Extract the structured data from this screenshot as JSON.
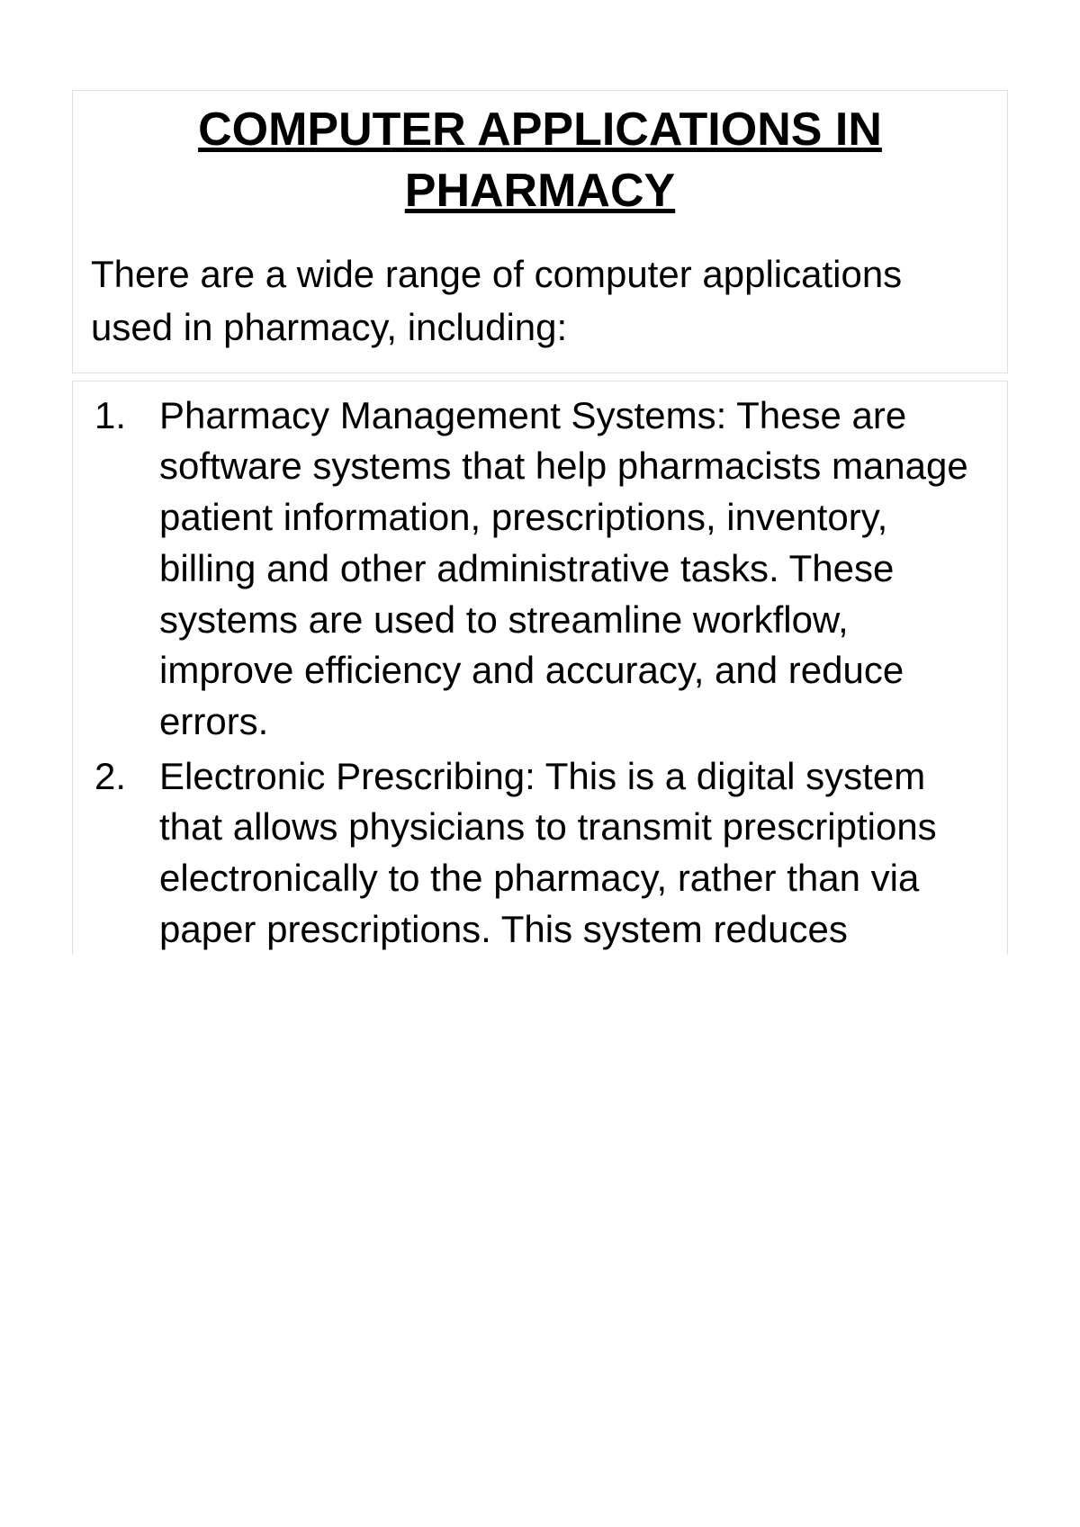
{
  "document": {
    "title": "COMPUTER APPLICATIONS IN PHARMACY",
    "intro": "There are a wide range of computer applications used in pharmacy, including:",
    "items": [
      {
        "number": "1.",
        "text": "Pharmacy Management Systems: These are software systems that help pharmacists manage patient information, prescriptions, inventory, billing and other administrative tasks. These systems are used to streamline workflow, improve efficiency and accuracy, and reduce errors."
      },
      {
        "number": "2.",
        "text": "Electronic Prescribing: This is a digital system that allows physicians to transmit prescriptions electronically to the pharmacy, rather than via paper prescriptions. This system reduces"
      }
    ],
    "colors": {
      "background": "#ffffff",
      "text": "#000000",
      "border": "#e0e0e0"
    },
    "typography": {
      "title_fontsize": 52,
      "title_weight": "bold",
      "title_decoration": "underline",
      "body_fontsize": 42,
      "font_family": "Segoe UI"
    }
  }
}
